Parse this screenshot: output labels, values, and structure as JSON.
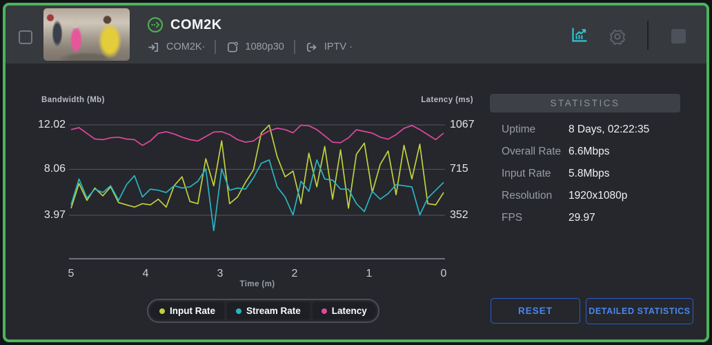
{
  "header": {
    "title": "COM2K",
    "input_label": "COM2K·",
    "encoder_label": "1080p30",
    "output_label": "IPTV ·"
  },
  "stats": {
    "title": "STATISTICS",
    "rows": [
      {
        "label": "Uptime",
        "value": "8 Days, 02:22:35"
      },
      {
        "label": "Overall Rate",
        "value": "6.6Mbps"
      },
      {
        "label": "Input Rate",
        "value": "5.8Mbps"
      },
      {
        "label": "Resolution",
        "value": "1920x1080p"
      },
      {
        "label": "FPS",
        "value": "29.97"
      }
    ]
  },
  "buttons": {
    "reset": "RESET",
    "detailed": "DETAILED STATISTICS"
  },
  "colors": {
    "card_border": "#4cb45c",
    "accent_teal": "#2ec6d2",
    "button_blue": "#4a87f0",
    "status_green": "#4caf50"
  },
  "chart_data": {
    "type": "line",
    "left_axis": {
      "label": "Bandwidth (Mb)",
      "ticks": [
        12.02,
        8.06,
        3.97
      ],
      "range": [
        0,
        12.02
      ]
    },
    "right_axis": {
      "label": "Latency (ms)",
      "ticks": [
        1067,
        715,
        352
      ],
      "range": [
        0,
        1067
      ]
    },
    "x_axis": {
      "label": "Time (m)",
      "ticks": [
        "5",
        "4",
        "3",
        "2",
        "1",
        "0"
      ],
      "range": [
        5,
        0
      ]
    },
    "grid": true,
    "legend_position": "bottom",
    "series": [
      {
        "name": "Input Rate",
        "axis": "left",
        "color": "#c3d13e",
        "values": [
          4.6,
          6.8,
          5.3,
          6.4,
          5.7,
          6.5,
          5.1,
          4.9,
          4.7,
          5.0,
          4.9,
          5.4,
          4.7,
          6.6,
          7.4,
          5.2,
          5.0,
          9.0,
          6.6,
          10.6,
          5.0,
          5.6,
          6.9,
          8.0,
          11.3,
          12.0,
          9.2,
          7.4,
          7.9,
          5.0,
          9.5,
          6.5,
          10.1,
          5.4,
          9.8,
          4.6,
          9.4,
          10.4,
          6.0,
          8.5,
          9.7,
          5.8,
          10.2,
          7.2,
          10.3,
          5.0,
          4.9,
          6.0
        ]
      },
      {
        "name": "Stream Rate",
        "axis": "left",
        "color": "#29b6c3",
        "values": [
          4.9,
          7.2,
          5.5,
          6.3,
          6.0,
          6.6,
          5.3,
          6.7,
          7.5,
          5.6,
          6.3,
          6.2,
          6.0,
          6.6,
          6.4,
          6.5,
          7.0,
          8.1,
          2.6,
          8.1,
          6.2,
          6.4,
          6.3,
          7.3,
          8.6,
          8.9,
          6.5,
          5.6,
          4.0,
          7.0,
          6.1,
          8.9,
          7.2,
          7.1,
          6.3,
          6.3,
          5.0,
          4.3,
          6.1,
          5.4,
          5.9,
          6.7,
          6.6,
          6.5,
          4.0,
          5.5,
          6.2,
          6.9
        ]
      },
      {
        "name": "Latency",
        "axis": "right",
        "color": "#e0489c",
        "values": [
          1030,
          1045,
          1000,
          955,
          950,
          965,
          970,
          955,
          950,
          905,
          940,
          1000,
          1013,
          995,
          970,
          950,
          940,
          975,
          1010,
          1013,
          990,
          950,
          930,
          940,
          985,
          1020,
          1040,
          1030,
          1005,
          1065,
          1060,
          1030,
          980,
          930,
          926,
          965,
          1029,
          1015,
          1002,
          970,
          954,
          990,
          1040,
          1062,
          1030,
          990,
          950,
          1002
        ]
      }
    ]
  }
}
